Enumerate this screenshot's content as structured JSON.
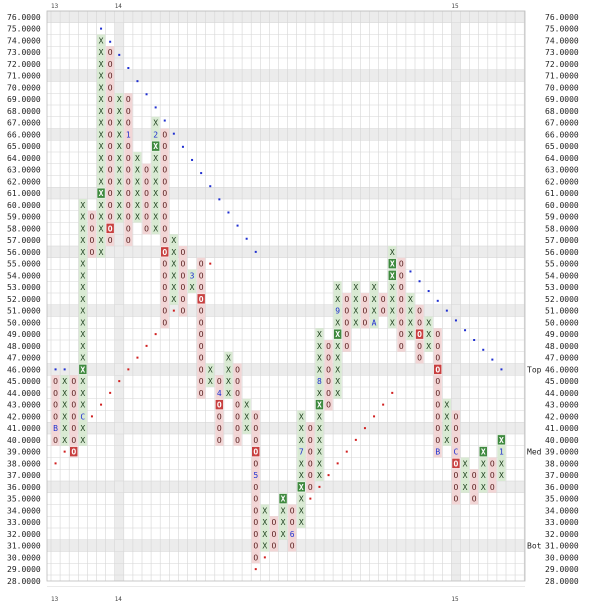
{
  "chart_data": {
    "type": "point-and-figure",
    "title": "",
    "xlabel": "",
    "ylabel": "",
    "box_size": 1,
    "ylim": [
      28,
      76
    ],
    "price_labels": [
      "76.0000",
      "75.0000",
      "74.0000",
      "73.0000",
      "72.0000",
      "71.0000",
      "70.0000",
      "69.0000",
      "68.0000",
      "67.0000",
      "66.0000",
      "65.0000",
      "64.0000",
      "63.0000",
      "62.0000",
      "61.0000",
      "60.0000",
      "59.0000",
      "58.0000",
      "57.0000",
      "56.0000",
      "55.0000",
      "54.0000",
      "53.0000",
      "52.0000",
      "51.0000",
      "50.0000",
      "49.0000",
      "48.0000",
      "47.0000",
      "46.0000",
      "45.0000",
      "44.0000",
      "43.0000",
      "42.0000",
      "41.0000",
      "40.0000",
      "39.0000",
      "38.0000",
      "37.0000",
      "36.0000",
      "35.0000",
      "34.0000",
      "33.0000",
      "32.0000",
      "31.0000",
      "30.0000",
      "29.0000",
      "28.0000"
    ],
    "period_labels": [
      {
        "col": 0,
        "text": "13"
      },
      {
        "col": 7,
        "text": "14"
      },
      {
        "col": 44,
        "text": "15"
      }
    ],
    "level_markers": [
      {
        "label": "Top",
        "price": 46
      },
      {
        "label": "Med",
        "price": 39
      },
      {
        "label": "Bot",
        "price": 31
      }
    ],
    "columns": [
      {
        "col": 0,
        "type": "O",
        "from": 40,
        "to": 45,
        "marks": {
          "41": "B"
        }
      },
      {
        "col": 1,
        "type": "X",
        "from": 40,
        "to": 45
      },
      {
        "col": 2,
        "type": "O",
        "from": 39,
        "to": 45,
        "marks": {
          "39": "box"
        }
      },
      {
        "col": 3,
        "type": "X",
        "from": 40,
        "to": 60,
        "marks": {
          "42": "C",
          "46": "box"
        }
      },
      {
        "col": 4,
        "type": "O",
        "from": 56,
        "to": 59
      },
      {
        "col": 5,
        "type": "X",
        "from": 56,
        "to": 74,
        "marks": {
          "61": "box"
        }
      },
      {
        "col": 6,
        "type": "O",
        "from": 57,
        "to": 73,
        "marks": {
          "58": "box"
        }
      },
      {
        "col": 7,
        "type": "X",
        "from": 59,
        "to": 69
      },
      {
        "col": 8,
        "type": "O",
        "from": 57,
        "to": 69,
        "marks": {
          "66": "1"
        }
      },
      {
        "col": 9,
        "type": "X",
        "from": 59,
        "to": 64
      },
      {
        "col": 10,
        "type": "O",
        "from": 58,
        "to": 63
      },
      {
        "col": 11,
        "type": "X",
        "from": 58,
        "to": 67,
        "marks": {
          "65": "box",
          "66": "2"
        }
      },
      {
        "col": 12,
        "type": "O",
        "from": 50,
        "to": 66,
        "marks": {
          "56": "box"
        }
      },
      {
        "col": 13,
        "type": "X",
        "from": 52,
        "to": 57
      },
      {
        "col": 14,
        "type": "O",
        "from": 51,
        "to": 56
      },
      {
        "col": 15,
        "type": "X",
        "from": 53,
        "to": 54,
        "marks": {
          "54": "3"
        }
      },
      {
        "col": 16,
        "type": "O",
        "from": 44,
        "to": 55,
        "marks": {
          "52": "box"
        }
      },
      {
        "col": 17,
        "type": "X",
        "from": 45,
        "to": 46
      },
      {
        "col": 18,
        "type": "O",
        "from": 40,
        "to": 45,
        "marks": {
          "43": "box",
          "44": "4"
        }
      },
      {
        "col": 19,
        "type": "X",
        "from": 44,
        "to": 47
      },
      {
        "col": 20,
        "type": "O",
        "from": 40,
        "to": 46
      },
      {
        "col": 21,
        "type": "X",
        "from": 41,
        "to": 43
      },
      {
        "col": 22,
        "type": "O",
        "from": 30,
        "to": 42,
        "marks": {
          "37": "5",
          "39": "box"
        }
      },
      {
        "col": 23,
        "type": "X",
        "from": 31,
        "to": 34
      },
      {
        "col": 24,
        "type": "O",
        "from": 31,
        "to": 33
      },
      {
        "col": 25,
        "type": "X",
        "from": 32,
        "to": 35,
        "marks": {
          "35": "box"
        }
      },
      {
        "col": 26,
        "type": "O",
        "from": 31,
        "to": 34,
        "marks": {
          "32": "6"
        }
      },
      {
        "col": 27,
        "type": "X",
        "from": 33,
        "to": 42,
        "marks": {
          "36": "box",
          "39": "7"
        }
      },
      {
        "col": 28,
        "type": "O",
        "from": 36,
        "to": 41
      },
      {
        "col": 29,
        "type": "X",
        "from": 37,
        "to": 49,
        "marks": {
          "43": "box",
          "45": "8"
        }
      },
      {
        "col": 30,
        "type": "O",
        "from": 43,
        "to": 48
      },
      {
        "col": 31,
        "type": "X",
        "from": 44,
        "to": 53,
        "marks": {
          "49": "box",
          "51": "9"
        }
      },
      {
        "col": 32,
        "type": "O",
        "from": 48,
        "to": 52
      },
      {
        "col": 33,
        "type": "X",
        "from": 50,
        "to": 53
      },
      {
        "col": 34,
        "type": "O",
        "from": 50,
        "to": 52
      },
      {
        "col": 35,
        "type": "X",
        "from": 50,
        "to": 53,
        "marks": {
          "50": "A"
        }
      },
      {
        "col": 36,
        "type": "O",
        "from": 51,
        "to": 52
      },
      {
        "col": 37,
        "type": "X",
        "from": 50,
        "to": 56,
        "marks": {
          "54": "box",
          "55": "box"
        }
      },
      {
        "col": 38,
        "type": "O",
        "from": 48,
        "to": 55
      },
      {
        "col": 39,
        "type": "X",
        "from": 49,
        "to": 52
      },
      {
        "col": 40,
        "type": "O",
        "from": 47,
        "to": 51,
        "marks": {
          "49": "box"
        }
      },
      {
        "col": 41,
        "type": "X",
        "from": 48,
        "to": 50
      },
      {
        "col": 42,
        "type": "O",
        "from": 39,
        "to": 49,
        "marks": {
          "39": "B",
          "46": "box"
        }
      },
      {
        "col": 43,
        "type": "X",
        "from": 40,
        "to": 43
      },
      {
        "col": 44,
        "type": "O",
        "from": 35,
        "to": 42,
        "marks": {
          "38": "box",
          "39": "C"
        }
      },
      {
        "col": 45,
        "type": "X",
        "from": 36,
        "to": 38
      },
      {
        "col": 46,
        "type": "O",
        "from": 35,
        "to": 37
      },
      {
        "col": 47,
        "type": "X",
        "from": 36,
        "to": 39,
        "marks": {
          "39": "box"
        }
      },
      {
        "col": 48,
        "type": "O",
        "from": 36,
        "to": 38
      },
      {
        "col": 49,
        "type": "X",
        "from": 37,
        "to": 40,
        "marks": {
          "39": "1",
          "40": "box"
        }
      }
    ],
    "resistance_line": {
      "color": "#1f2fd0",
      "from": {
        "col": 5,
        "price": 75
      },
      "to": {
        "col": 22,
        "price": 56
      }
    },
    "resistance_line_2": {
      "color": "#1f2fd0",
      "from": {
        "col": 37,
        "price": 56
      },
      "to": {
        "col": 49,
        "price": 46
      }
    },
    "support_line": {
      "color": "#d01f1f",
      "from": {
        "col": 0,
        "price": 38
      },
      "to": {
        "col": 17,
        "price": 55
      }
    },
    "support_line_2": {
      "color": "#d01f1f",
      "from": {
        "col": 22,
        "price": 29
      },
      "to": {
        "col": 37,
        "price": 44
      }
    },
    "support_line_3": {
      "color": "#1f2fd0",
      "from": {
        "col": 0,
        "price": 46
      },
      "to": {
        "col": 1,
        "price": 46
      }
    },
    "colors": {
      "x_band": "#d9ead3",
      "o_band": "#f2d6d6",
      "x_mark": "#1a3d1a",
      "o_mark": "#5a1f1f",
      "box_x_fill": "#3f8a3f",
      "box_o_fill": "#c84040",
      "grid": "#d6d6d6",
      "band": "#ececec"
    }
  }
}
